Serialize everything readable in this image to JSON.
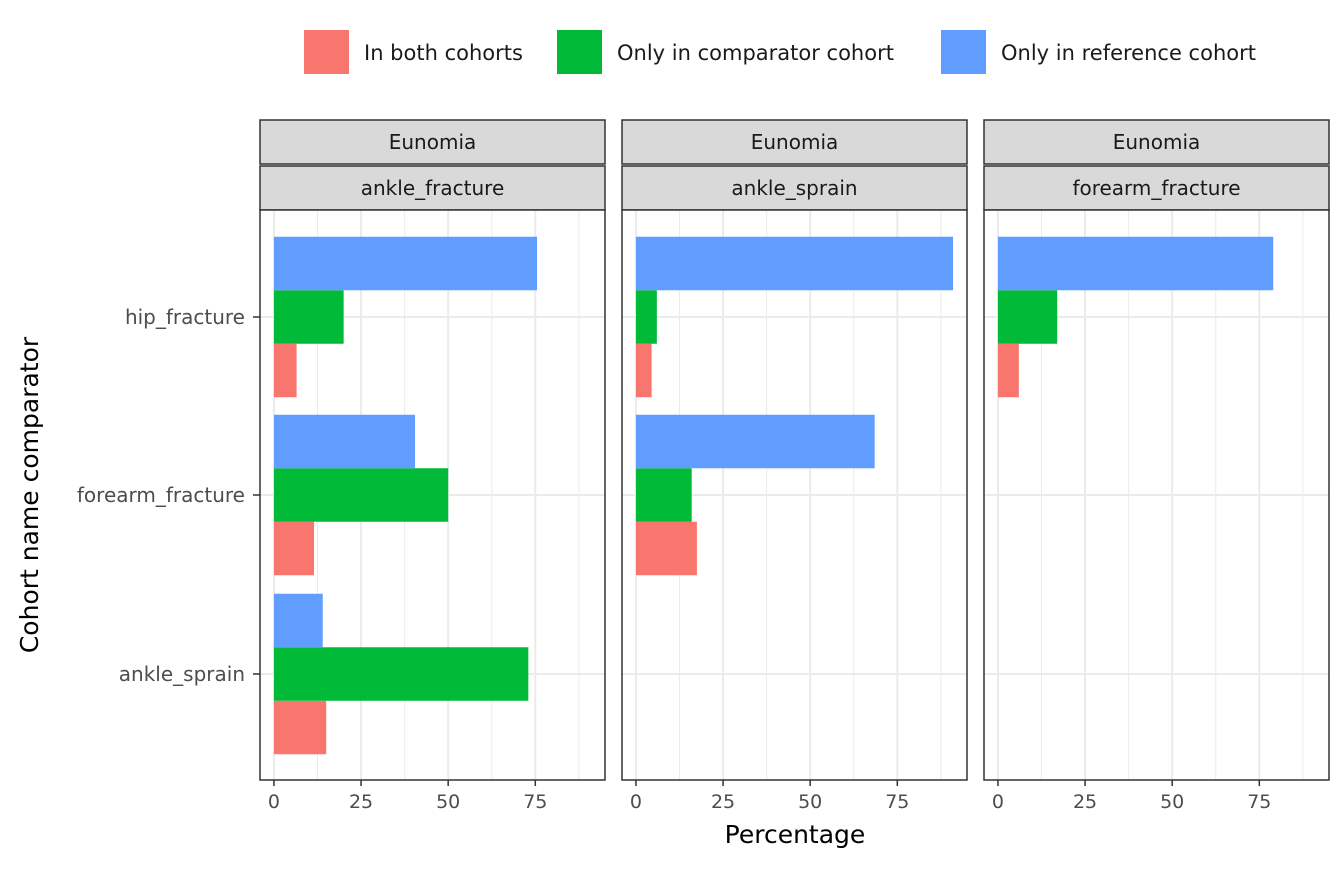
{
  "chart_data": {
    "type": "bar",
    "orientation": "horizontal",
    "xlabel": "Percentage",
    "ylabel": "Cohort name comparator",
    "xlim": [
      -4,
      95
    ],
    "xticks": [
      0,
      25,
      50,
      75
    ],
    "xtick_labels": [
      "0",
      "25",
      "50",
      "75"
    ],
    "grid": true,
    "legend_position": "top",
    "categories": [
      "hip_fracture",
      "forearm_fracture",
      "ankle_sprain"
    ],
    "series": [
      {
        "name": "In both cohorts",
        "color": "#F8766D"
      },
      {
        "name": "Only in comparator cohort",
        "color": "#00BA38"
      },
      {
        "name": "Only in reference cohort",
        "color": "#619CFF"
      }
    ],
    "panels": [
      {
        "strip_top": "Eunomia",
        "strip_bottom": "ankle_fracture",
        "values": {
          "hip_fracture": [
            6.5,
            20,
            75.5
          ],
          "forearm_fracture": [
            11.5,
            50,
            40.5
          ],
          "ankle_sprain": [
            15,
            73,
            14
          ]
        }
      },
      {
        "strip_top": "Eunomia",
        "strip_bottom": "ankle_sprain",
        "values": {
          "hip_fracture": [
            4.5,
            6,
            91
          ],
          "forearm_fracture": [
            17.5,
            16,
            68.5
          ]
        }
      },
      {
        "strip_top": "Eunomia",
        "strip_bottom": "forearm_fracture",
        "values": {
          "hip_fracture": [
            6,
            17,
            79
          ]
        }
      }
    ]
  }
}
